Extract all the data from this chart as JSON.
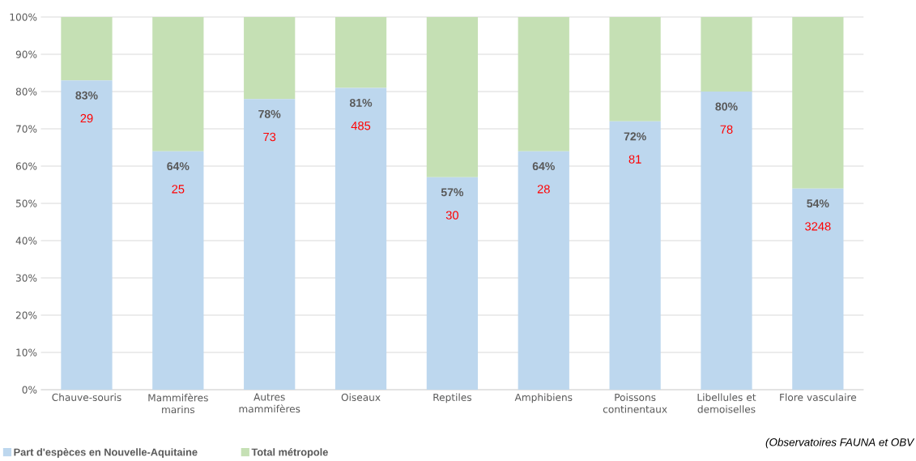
{
  "chart_data": {
    "type": "bar",
    "stacked": true,
    "categories": [
      "Chauve-souris",
      "Mammifères marins",
      "Autres mammifères",
      "Oiseaux",
      "Reptiles",
      "Amphibiens",
      "Poissons continentaux",
      "Libellules et demoiselles",
      "Flore vasculaire"
    ],
    "series": [
      {
        "name": "Part d'espèces en Nouvelle-Aquitaine",
        "color": "#bdd7ee",
        "values": [
          83,
          64,
          78,
          81,
          57,
          64,
          72,
          80,
          54
        ],
        "value_labels": [
          "83%",
          "64%",
          "78%",
          "81%",
          "57%",
          "64%",
          "72%",
          "80%",
          "54%"
        ]
      },
      {
        "name": "Total métropole",
        "color": "#c5e0b4",
        "values": [
          17,
          36,
          22,
          19,
          43,
          36,
          28,
          20,
          46
        ]
      }
    ],
    "ylim": [
      0,
      100
    ],
    "yticks": [
      {
        "value": 0,
        "label": "0%"
      },
      {
        "value": 10,
        "label": "10%"
      },
      {
        "value": 20,
        "label": "20%"
      },
      {
        "value": 30,
        "label": "30%"
      },
      {
        "value": 40,
        "label": "40%"
      },
      {
        "value": 50,
        "label": "50%"
      },
      {
        "value": 60,
        "label": "60%"
      },
      {
        "value": 70,
        "label": "70%"
      },
      {
        "value": 80,
        "label": "80%"
      },
      {
        "value": 90,
        "label": "90%"
      },
      {
        "value": 100,
        "label": "100%"
      }
    ],
    "grid": "y",
    "legend": "bottom",
    "annotations": [
      {
        "text": "29",
        "x": "Chauve-souris",
        "y": 83
      },
      {
        "text": "25",
        "x": "Mammifères marins",
        "y": 64
      },
      {
        "text": "73",
        "x": "Autres mammifères",
        "y": 78
      },
      {
        "text": "485",
        "x": "Oiseaux",
        "y": 81
      },
      {
        "text": "30",
        "x": "Reptiles",
        "y": 57
      },
      {
        "text": "28",
        "x": "Amphibiens",
        "y": 64
      },
      {
        "text": "81",
        "x": "Poissons continentaux",
        "y": 72
      },
      {
        "text": "78",
        "x": "Libellules et demoiselles",
        "y": 80
      },
      {
        "text": "3248",
        "x": "Flore vasculaire",
        "y": 54
      },
      "(Observatoires FAUNA et OBV"
    ]
  }
}
